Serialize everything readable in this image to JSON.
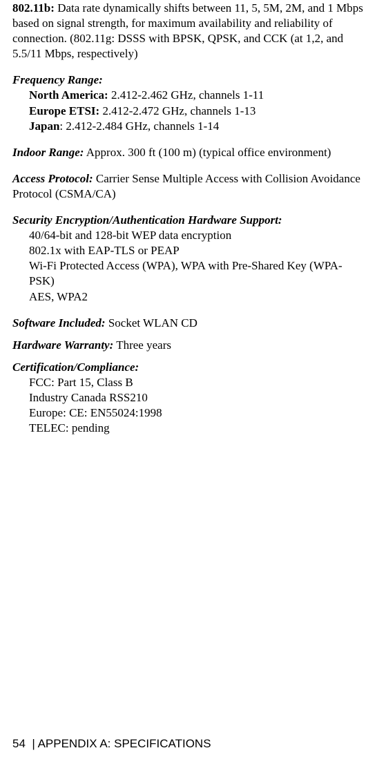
{
  "data_rate": {
    "label": "802.11b:",
    "text": "Data rate dynamically shifts between 11, 5, 5M, 2M, and 1 Mbps based on signal strength, for maximum availability and reliability of connection. (802.11g: DSSS with BPSK, QPSK, and CCK (at 1,2, and 5.5/11 Mbps, respectively)"
  },
  "freq": {
    "label": "Frequency Range:",
    "items": [
      {
        "label": "North America:",
        "text": "2.412-2.462 GHz, channels 1-11"
      },
      {
        "label": "Europe ETSI:",
        "text": "2.412-2.472 GHz, channels 1-13"
      },
      {
        "label": "Japan",
        "text": ": 2.412-2.484 GHz, channels 1-14"
      }
    ]
  },
  "indoor_range": {
    "label": "Indoor Range:",
    "text": "Approx. 300 ft (100 m) (typical office environment)"
  },
  "access_protocol": {
    "label": "Access Protocol:",
    "text": "Carrier Sense Multiple Access with Collision Avoidance Protocol (CSMA/CA)"
  },
  "security": {
    "label": "Security Encryption/Authentication Hardware Support:",
    "items": [
      "40/64-bit and 128-bit WEP data encryption",
      "802.1x with EAP-TLS or PEAP",
      "Wi-Fi Protected Access (WPA), WPA with Pre-Shared Key (WPA-PSK)",
      "AES, WPA2"
    ]
  },
  "software": {
    "label": "Software Included:",
    "text": "Socket WLAN CD"
  },
  "warranty": {
    "label": "Hardware Warranty:",
    "text": "Three years"
  },
  "cert": {
    "label": "Certification/Compliance:",
    "items": [
      "FCC: Part 15, Class B",
      "Industry Canada RSS210",
      "Europe: CE: EN55024:1998",
      "TELEC: pending"
    ]
  },
  "footer": {
    "page": "54",
    "title": "| APPENDIX A: SPECIFICATIONS"
  }
}
